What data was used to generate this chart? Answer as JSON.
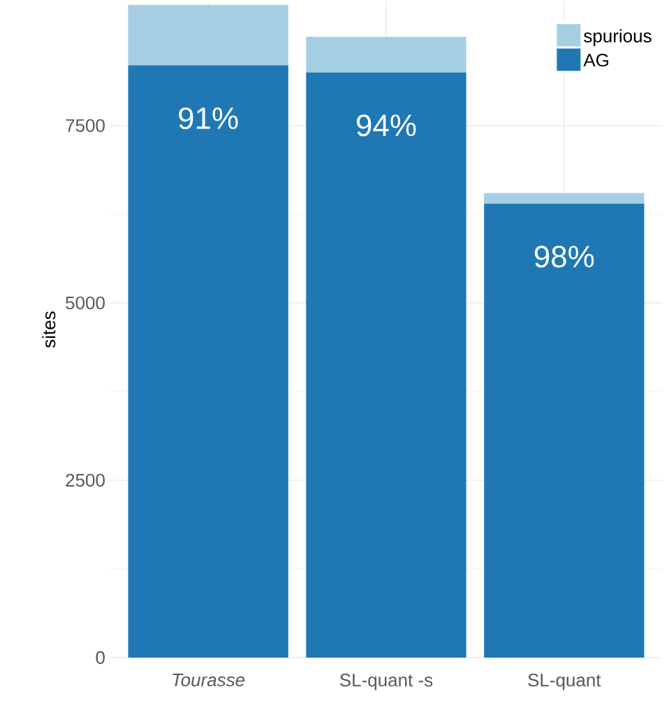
{
  "chart_data": {
    "type": "bar",
    "stacked": true,
    "categories": [
      "*Tourasse*",
      "SL-quant  -s",
      "SL-quant"
    ],
    "series": [
      {
        "name": "AG",
        "color": "#1f78b4",
        "values": [
          8350,
          8250,
          6400
        ]
      },
      {
        "name": "spurious",
        "color": "#a6cee3",
        "values": [
          850,
          500,
          150
        ]
      }
    ],
    "ylabel": "sites",
    "ylim": [
      0,
      9250
    ],
    "yticks": [
      0,
      2500,
      5000,
      7500
    ],
    "grid": true,
    "legend": "top right",
    "annotations": [
      "91%",
      "94%",
      "98%"
    ]
  }
}
